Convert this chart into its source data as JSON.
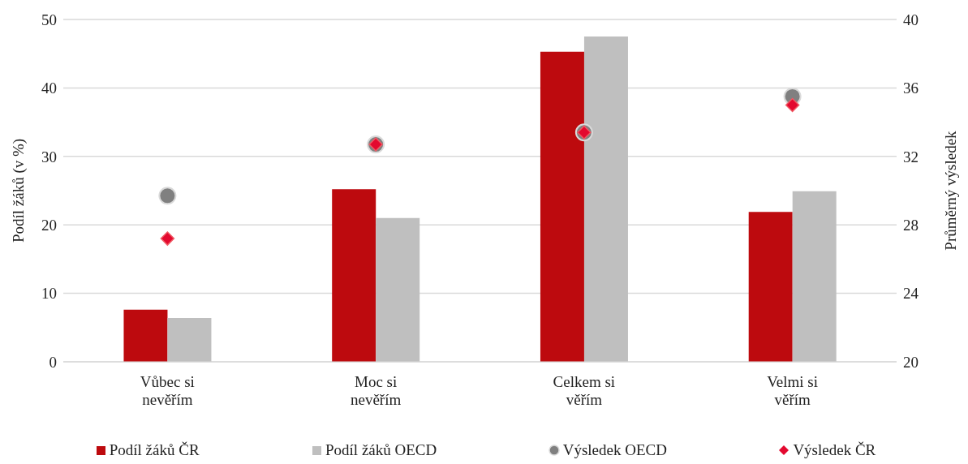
{
  "chart_data": {
    "type": "bar",
    "categories": [
      "Vůbec si nevěřím",
      "Moc si nevěřím",
      "Celkem si věřím",
      "Velmi si věřím"
    ],
    "ylabel": "Podíl žáků (v %)",
    "y2label": "Průměrný výsledek",
    "ylim": [
      0,
      50
    ],
    "yticks": [
      0,
      10,
      20,
      30,
      40,
      50
    ],
    "y2lim": [
      20,
      40
    ],
    "y2ticks": [
      20,
      24,
      28,
      32,
      36,
      40
    ],
    "grid": "y",
    "legend": "bottom",
    "series": [
      {
        "name": "Podíl žáků ČR",
        "color": "#bd0a0e",
        "values": [
          7.6,
          25.2,
          45.3,
          21.9
        ]
      },
      {
        "name": "Podíl žáků OECD",
        "color": "#bfbfbf",
        "values": [
          6.4,
          21.0,
          47.5,
          24.9
        ]
      },
      {
        "name": "Výsledek OECD",
        "type": "scatter",
        "axis": "y2",
        "marker": "circle",
        "color": "#808080",
        "values": [
          29.7,
          32.7,
          33.4,
          35.5
        ]
      },
      {
        "name": "Výsledek ČR",
        "type": "scatter",
        "axis": "y2",
        "marker": "diamond",
        "color": "#e3092f",
        "values": [
          27.2,
          32.7,
          33.4,
          35.0
        ]
      }
    ]
  }
}
